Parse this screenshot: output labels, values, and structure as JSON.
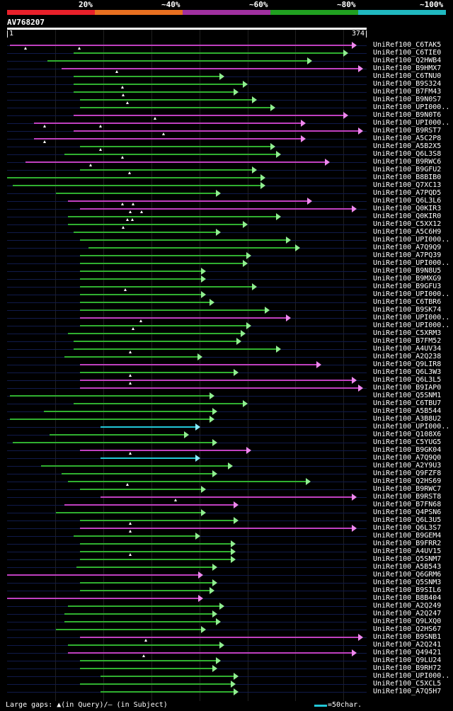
{
  "legend": {
    "items": [
      {
        "label": "20%",
        "color": "#e8202a"
      },
      {
        "label": "~40%",
        "color": "#e87020"
      },
      {
        "label": "~60%",
        "color": "#a030a0"
      },
      {
        "label": "~80%",
        "color": "#20a020"
      },
      {
        "label": "~100%",
        "color": "#20b8c0"
      }
    ]
  },
  "query": {
    "id": "AV768207",
    "start_label": "1",
    "end_label": "374",
    "length": 374
  },
  "colors": {
    "magenta": "#c040c0",
    "green": "#30b030",
    "cyan": "#22c8d8",
    "arrow_green": "#90ee90",
    "arrow_magenta": "#ee88ee",
    "arrow_cyan": "#88eeff"
  },
  "hits": [
    {
      "name": "UniRef100_C6TAK5",
      "start": 3,
      "end": 364,
      "color": "magenta",
      "gaps": [
        19,
        75
      ]
    },
    {
      "name": "UniRef100_C6TIE0",
      "start": 69,
      "end": 355,
      "color": "green",
      "gaps": []
    },
    {
      "name": "UniRef100_Q2HWB4",
      "start": 42,
      "end": 317,
      "color": "green",
      "gaps": []
    },
    {
      "name": "UniRef100_B9HMX7",
      "start": 57,
      "end": 370,
      "color": "magenta",
      "gaps": [
        114
      ]
    },
    {
      "name": "UniRef100_C6TNU0",
      "start": 69,
      "end": 226,
      "color": "green",
      "gaps": []
    },
    {
      "name": "UniRef100_B9S324",
      "start": 69,
      "end": 250,
      "color": "green",
      "gaps": [
        120
      ]
    },
    {
      "name": "UniRef100_B7FM43",
      "start": 69,
      "end": 241,
      "color": "green",
      "gaps": [
        121
      ]
    },
    {
      "name": "UniRef100_B9N0S7",
      "start": 76,
      "end": 260,
      "color": "green",
      "gaps": [
        125
      ]
    },
    {
      "name": "UniRef100_UPI000..",
      "start": 76,
      "end": 279,
      "color": "green",
      "gaps": []
    },
    {
      "name": "UniRef100_B9N0T6",
      "start": 69,
      "end": 355,
      "color": "magenta",
      "gaps": [
        154
      ]
    },
    {
      "name": "UniRef100_UPI000..",
      "start": 28,
      "end": 311,
      "color": "magenta",
      "gaps": [
        39,
        97
      ]
    },
    {
      "name": "UniRef100_B9RST7",
      "start": 69,
      "end": 370,
      "color": "magenta",
      "gaps": [
        163
      ]
    },
    {
      "name": "UniRef100_A5C2P8",
      "start": 28,
      "end": 311,
      "color": "magenta",
      "gaps": [
        39
      ]
    },
    {
      "name": "UniRef100_A5B2X5",
      "start": 76,
      "end": 279,
      "color": "green",
      "gaps": [
        97
      ]
    },
    {
      "name": "UniRef100_Q6L3S8",
      "start": 60,
      "end": 285,
      "color": "green",
      "gaps": [
        120
      ]
    },
    {
      "name": "UniRef100_B9RWC6",
      "start": 19,
      "end": 336,
      "color": "magenta",
      "gaps": [
        87
      ]
    },
    {
      "name": "UniRef100_B9GFU2",
      "start": 76,
      "end": 260,
      "color": "green",
      "gaps": [
        127
      ]
    },
    {
      "name": "UniRef100_B8BIB0",
      "start": 0,
      "end": 269,
      "color": "green",
      "gaps": []
    },
    {
      "name": "UniRef100_Q7XC13",
      "start": 6,
      "end": 269,
      "color": "green",
      "gaps": []
    },
    {
      "name": "UniRef100_A7PQD5",
      "start": 51,
      "end": 222,
      "color": "green",
      "gaps": []
    },
    {
      "name": "UniRef100_Q6L3L6",
      "start": 63,
      "end": 317,
      "color": "magenta",
      "gaps": [
        120,
        131
      ]
    },
    {
      "name": "UniRef100_Q0KIR3",
      "start": 76,
      "end": 364,
      "color": "magenta",
      "gaps": [
        128,
        140
      ]
    },
    {
      "name": "UniRef100_Q0KIR0",
      "start": 63,
      "end": 285,
      "color": "green",
      "gaps": [
        125,
        130
      ]
    },
    {
      "name": "UniRef100_C5XX12",
      "start": 63,
      "end": 250,
      "color": "green",
      "gaps": [
        121
      ]
    },
    {
      "name": "UniRef100_A5C6H9",
      "start": 69,
      "end": 222,
      "color": "green",
      "gaps": []
    },
    {
      "name": "UniRef100_UPI000..",
      "start": 76,
      "end": 295,
      "color": "green",
      "gaps": []
    },
    {
      "name": "UniRef100_A7Q9Q9",
      "start": 85,
      "end": 305,
      "color": "green",
      "gaps": []
    },
    {
      "name": "UniRef100_A7PQ39",
      "start": 76,
      "end": 254,
      "color": "green",
      "gaps": []
    },
    {
      "name": "UniRef100_UPI000..",
      "start": 76,
      "end": 250,
      "color": "green",
      "gaps": []
    },
    {
      "name": "UniRef100_B9N8U5",
      "start": 76,
      "end": 207,
      "color": "green",
      "gaps": []
    },
    {
      "name": "UniRef100_B9MXG9",
      "start": 76,
      "end": 207,
      "color": "green",
      "gaps": []
    },
    {
      "name": "UniRef100_B9GFU3",
      "start": 76,
      "end": 260,
      "color": "green",
      "gaps": [
        123
      ]
    },
    {
      "name": "UniRef100_UPI000..",
      "start": 76,
      "end": 207,
      "color": "green",
      "gaps": []
    },
    {
      "name": "UniRef100_C6TBR6",
      "start": 76,
      "end": 216,
      "color": "green",
      "gaps": []
    },
    {
      "name": "UniRef100_B9SK74",
      "start": 76,
      "end": 273,
      "color": "green",
      "gaps": []
    },
    {
      "name": "UniRef100_UPI000..",
      "start": 76,
      "end": 295,
      "color": "magenta",
      "gaps": [
        139
      ]
    },
    {
      "name": "UniRef100_UPI000..",
      "start": 76,
      "end": 254,
      "color": "green",
      "gaps": [
        131
      ]
    },
    {
      "name": "UniRef100_C5XRM3",
      "start": 63,
      "end": 248,
      "color": "green",
      "gaps": []
    },
    {
      "name": "UniRef100_B7FM52",
      "start": 69,
      "end": 244,
      "color": "green",
      "gaps": []
    },
    {
      "name": "UniRef100_A4UV34",
      "start": 69,
      "end": 285,
      "color": "green",
      "gaps": [
        128
      ]
    },
    {
      "name": "UniRef100_A2Q238",
      "start": 60,
      "end": 203,
      "color": "green",
      "gaps": []
    },
    {
      "name": "UniRef100_Q9LIR8",
      "start": 76,
      "end": 327,
      "color": "magenta",
      "gaps": []
    },
    {
      "name": "UniRef100_Q6L3W3",
      "start": 76,
      "end": 241,
      "color": "green",
      "gaps": [
        128
      ]
    },
    {
      "name": "UniRef100_Q6L3L5",
      "start": 76,
      "end": 364,
      "color": "magenta",
      "gaps": [
        128
      ]
    },
    {
      "name": "UniRef100_B9IAP0",
      "start": 76,
      "end": 370,
      "color": "magenta",
      "gaps": []
    },
    {
      "name": "UniRef100_Q5SNM1",
      "start": 3,
      "end": 216,
      "color": "green",
      "gaps": []
    },
    {
      "name": "UniRef100_C6TBU7",
      "start": 69,
      "end": 250,
      "color": "green",
      "gaps": []
    },
    {
      "name": "UniRef100_A5B544",
      "start": 38,
      "end": 219,
      "color": "green",
      "gaps": []
    },
    {
      "name": "UniRef100_A3B8U2",
      "start": 3,
      "end": 216,
      "color": "green",
      "gaps": []
    },
    {
      "name": "UniRef100_UPI000..",
      "start": 97,
      "end": 201,
      "color": "cyan",
      "gaps": []
    },
    {
      "name": "UniRef100_Q108X6",
      "start": 44,
      "end": 189,
      "color": "green",
      "gaps": []
    },
    {
      "name": "UniRef100_C5YUG5",
      "start": 6,
      "end": 219,
      "color": "green",
      "gaps": []
    },
    {
      "name": "UniRef100_B9GK04",
      "start": 76,
      "end": 254,
      "color": "magenta",
      "gaps": [
        128
      ]
    },
    {
      "name": "UniRef100_A7Q9Q0",
      "start": 97,
      "end": 201,
      "color": "cyan",
      "gaps": []
    },
    {
      "name": "UniRef100_A2Y9U3",
      "start": 35,
      "end": 235,
      "color": "green",
      "gaps": []
    },
    {
      "name": "UniRef100_Q9FZF8",
      "start": 57,
      "end": 219,
      "color": "green",
      "gaps": []
    },
    {
      "name": "UniRef100_Q2HS69",
      "start": 63,
      "end": 316,
      "color": "green",
      "gaps": [
        125
      ]
    },
    {
      "name": "UniRef100_B9RWC7",
      "start": 76,
      "end": 207,
      "color": "green",
      "gaps": []
    },
    {
      "name": "UniRef100_B9RST8",
      "start": 97,
      "end": 364,
      "color": "magenta",
      "gaps": [
        175
      ]
    },
    {
      "name": "UniRef100_B7FN68",
      "start": 60,
      "end": 241,
      "color": "magenta",
      "gaps": []
    },
    {
      "name": "UniRef100_Q4PSN6",
      "start": 51,
      "end": 207,
      "color": "green",
      "gaps": []
    },
    {
      "name": "UniRef100_Q6L3U5",
      "start": 76,
      "end": 241,
      "color": "green",
      "gaps": [
        128
      ]
    },
    {
      "name": "UniRef100_Q6L3S7",
      "start": 76,
      "end": 364,
      "color": "magenta",
      "gaps": [
        128
      ]
    },
    {
      "name": "UniRef100_B9GEM4",
      "start": 69,
      "end": 201,
      "color": "green",
      "gaps": []
    },
    {
      "name": "UniRef100_B9FRR2",
      "start": 76,
      "end": 238,
      "color": "green",
      "gaps": []
    },
    {
      "name": "UniRef100_A4UV15",
      "start": 76,
      "end": 238,
      "color": "green",
      "gaps": [
        128
      ]
    },
    {
      "name": "UniRef100_Q5SNM7",
      "start": 76,
      "end": 238,
      "color": "green",
      "gaps": []
    },
    {
      "name": "UniRef100_A5B543",
      "start": 72,
      "end": 219,
      "color": "green",
      "gaps": []
    },
    {
      "name": "UniRef100_Q6GRM6",
      "start": 0,
      "end": 204,
      "color": "magenta",
      "gaps": []
    },
    {
      "name": "UniRef100_Q5SNM3",
      "start": 76,
      "end": 219,
      "color": "green",
      "gaps": []
    },
    {
      "name": "UniRef100_B9SIL6",
      "start": 76,
      "end": 216,
      "color": "green",
      "gaps": []
    },
    {
      "name": "UniRef100_B8B404",
      "start": 0,
      "end": 204,
      "color": "magenta",
      "gaps": []
    },
    {
      "name": "UniRef100_A2Q249",
      "start": 63,
      "end": 226,
      "color": "green",
      "gaps": []
    },
    {
      "name": "UniRef100_A2Q247",
      "start": 60,
      "end": 219,
      "color": "green",
      "gaps": []
    },
    {
      "name": "UniRef100_Q9LXQ0",
      "start": 60,
      "end": 222,
      "color": "green",
      "gaps": []
    },
    {
      "name": "UniRef100_Q2HS67",
      "start": 51,
      "end": 207,
      "color": "green",
      "gaps": []
    },
    {
      "name": "UniRef100_B9SNB1",
      "start": 76,
      "end": 370,
      "color": "magenta",
      "gaps": [
        144
      ]
    },
    {
      "name": "UniRef100_A2Q241",
      "start": 63,
      "end": 226,
      "color": "green",
      "gaps": []
    },
    {
      "name": "UniRef100_Q49421",
      "start": 63,
      "end": 364,
      "color": "magenta",
      "gaps": [
        142
      ]
    },
    {
      "name": "UniRef100_Q9LU24",
      "start": 76,
      "end": 222,
      "color": "green",
      "gaps": []
    },
    {
      "name": "UniRef100_B9RH72",
      "start": 76,
      "end": 219,
      "color": "green",
      "gaps": []
    },
    {
      "name": "UniRef100_UPI000..",
      "start": 97,
      "end": 241,
      "color": "green",
      "gaps": []
    },
    {
      "name": "UniRef100_C5XCL5",
      "start": 76,
      "end": 238,
      "color": "green",
      "gaps": []
    },
    {
      "name": "UniRef100_A7Q5H7",
      "start": 97,
      "end": 241,
      "color": "green",
      "gaps": []
    }
  ],
  "footer": {
    "gaps_text": "Large gaps: ▲(in Query)/– (in Subject)",
    "scale_text": "=50char."
  }
}
